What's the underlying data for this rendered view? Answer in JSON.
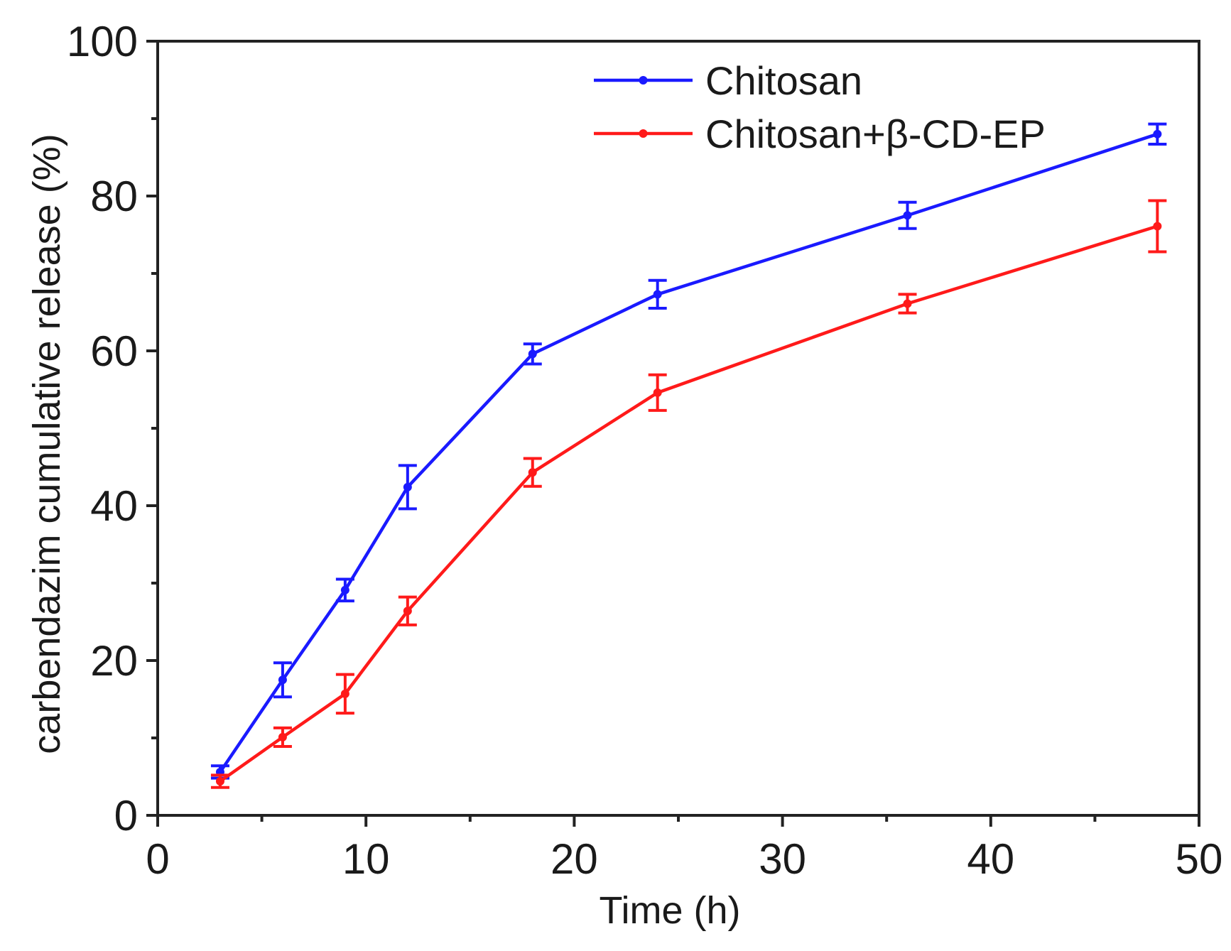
{
  "chart_data": {
    "type": "line",
    "title": "",
    "xlabel": "Time (h)",
    "ylabel": "carbendazim cumulative release  (%)",
    "xlim": [
      0,
      50
    ],
    "ylim": [
      0,
      100
    ],
    "xticks": [
      0,
      10,
      20,
      30,
      40,
      50
    ],
    "yticks": [
      0,
      20,
      40,
      60,
      80,
      100
    ],
    "xminor_step": 5,
    "yminor_step": 10,
    "grid": false,
    "legend_position": "top-right",
    "x": [
      3,
      6,
      9,
      12,
      18,
      24,
      36,
      48
    ],
    "series": [
      {
        "name": "Chitosan",
        "color": "#1a1aff",
        "values": [
          5.6,
          17.5,
          29.1,
          42.4,
          59.6,
          67.3,
          77.5,
          88.0
        ],
        "errors": [
          0.8,
          2.2,
          1.4,
          2.8,
          1.3,
          1.8,
          1.7,
          1.3
        ]
      },
      {
        "name": "Chitosan+β-CD-EP",
        "color": "#ff1a1a",
        "values": [
          4.4,
          10.1,
          15.7,
          26.4,
          44.3,
          54.6,
          66.1,
          76.1
        ],
        "errors": [
          0.8,
          1.2,
          2.5,
          1.8,
          1.8,
          2.3,
          1.2,
          3.3
        ]
      }
    ]
  }
}
